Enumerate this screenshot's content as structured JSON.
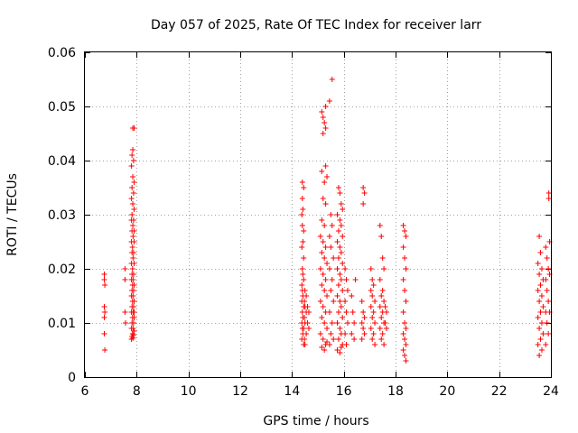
{
  "chart_data": {
    "type": "scatter",
    "title": "Day 057 of 2025, Rate Of TEC Index for receiver larr",
    "xlabel": "GPS time / hours",
    "ylabel": "ROTI / TECUs",
    "xlim": [
      6,
      24
    ],
    "ylim": [
      0,
      0.06
    ],
    "x_ticks": [
      6,
      8,
      10,
      12,
      14,
      16,
      18,
      20,
      22,
      24
    ],
    "x_tick_labels": [
      "6",
      "8",
      "10",
      "12",
      "14",
      "16",
      "18",
      "20",
      "22",
      "24"
    ],
    "y_ticks": [
      0,
      0.01,
      0.02,
      0.03,
      0.04,
      0.05,
      0.06
    ],
    "y_tick_labels": [
      "0",
      "0.01",
      "0.02",
      "0.03",
      "0.04",
      "0.05",
      "0.06"
    ],
    "grid": true,
    "marker": "+",
    "color": "#ff0000",
    "points": [
      [
        6.75,
        0.019
      ],
      [
        6.75,
        0.018
      ],
      [
        6.77,
        0.017
      ],
      [
        6.75,
        0.013
      ],
      [
        6.77,
        0.012
      ],
      [
        6.75,
        0.011
      ],
      [
        6.75,
        0.008
      ],
      [
        6.77,
        0.005
      ],
      [
        7.55,
        0.02
      ],
      [
        7.55,
        0.018
      ],
      [
        7.55,
        0.012
      ],
      [
        7.57,
        0.01
      ],
      [
        7.85,
        0.046
      ],
      [
        7.9,
        0.046
      ],
      [
        7.85,
        0.042
      ],
      [
        7.82,
        0.041
      ],
      [
        7.88,
        0.04
      ],
      [
        7.8,
        0.039
      ],
      [
        7.85,
        0.037
      ],
      [
        7.9,
        0.036
      ],
      [
        7.82,
        0.035
      ],
      [
        7.88,
        0.034
      ],
      [
        7.8,
        0.033
      ],
      [
        7.85,
        0.032
      ],
      [
        7.9,
        0.031
      ],
      [
        7.82,
        0.03
      ],
      [
        7.88,
        0.029
      ],
      [
        7.8,
        0.029
      ],
      [
        7.85,
        0.028
      ],
      [
        7.9,
        0.027
      ],
      [
        7.82,
        0.027
      ],
      [
        7.86,
        0.026
      ],
      [
        7.8,
        0.025
      ],
      [
        7.9,
        0.025
      ],
      [
        7.84,
        0.024
      ],
      [
        7.88,
        0.023
      ],
      [
        7.82,
        0.023
      ],
      [
        7.86,
        0.022
      ],
      [
        7.8,
        0.021
      ],
      [
        7.9,
        0.021
      ],
      [
        7.84,
        0.02
      ],
      [
        7.88,
        0.019
      ],
      [
        7.82,
        0.019
      ],
      [
        7.86,
        0.018
      ],
      [
        7.8,
        0.018
      ],
      [
        7.9,
        0.017
      ],
      [
        7.84,
        0.017
      ],
      [
        7.88,
        0.016
      ],
      [
        7.82,
        0.016
      ],
      [
        7.86,
        0.015
      ],
      [
        7.8,
        0.015
      ],
      [
        7.9,
        0.014
      ],
      [
        7.84,
        0.014
      ],
      [
        7.88,
        0.013
      ],
      [
        7.82,
        0.013
      ],
      [
        7.86,
        0.012
      ],
      [
        7.8,
        0.012
      ],
      [
        7.9,
        0.011
      ],
      [
        7.84,
        0.011
      ],
      [
        7.88,
        0.01
      ],
      [
        7.82,
        0.01
      ],
      [
        7.86,
        0.009
      ],
      [
        7.8,
        0.009
      ],
      [
        7.9,
        0.0085
      ],
      [
        7.84,
        0.008
      ],
      [
        7.88,
        0.0078
      ],
      [
        7.82,
        0.0075
      ],
      [
        7.86,
        0.0072
      ],
      [
        7.8,
        0.007
      ],
      [
        7.9,
        0.012
      ],
      [
        14.4,
        0.036
      ],
      [
        14.45,
        0.035
      ],
      [
        14.4,
        0.033
      ],
      [
        14.42,
        0.031
      ],
      [
        14.38,
        0.03
      ],
      [
        14.4,
        0.028
      ],
      [
        14.45,
        0.027
      ],
      [
        14.42,
        0.025
      ],
      [
        14.38,
        0.024
      ],
      [
        14.45,
        0.022
      ],
      [
        14.4,
        0.02
      ],
      [
        14.42,
        0.019
      ],
      [
        14.45,
        0.018
      ],
      [
        14.38,
        0.017
      ],
      [
        14.4,
        0.016
      ],
      [
        14.5,
        0.016
      ],
      [
        14.55,
        0.015
      ],
      [
        14.42,
        0.015
      ],
      [
        14.48,
        0.014
      ],
      [
        14.38,
        0.014
      ],
      [
        14.45,
        0.013
      ],
      [
        14.5,
        0.013
      ],
      [
        14.4,
        0.012
      ],
      [
        14.55,
        0.012
      ],
      [
        14.42,
        0.011
      ],
      [
        14.48,
        0.011
      ],
      [
        14.38,
        0.01
      ],
      [
        14.5,
        0.01
      ],
      [
        14.45,
        0.009
      ],
      [
        14.4,
        0.009
      ],
      [
        14.55,
        0.008
      ],
      [
        14.42,
        0.008
      ],
      [
        14.48,
        0.007
      ],
      [
        14.38,
        0.007
      ],
      [
        14.5,
        0.006
      ],
      [
        14.45,
        0.006
      ],
      [
        14.6,
        0.013
      ],
      [
        14.65,
        0.012
      ],
      [
        14.6,
        0.01
      ],
      [
        14.65,
        0.009
      ],
      [
        15.15,
        0.049
      ],
      [
        15.2,
        0.048
      ],
      [
        15.3,
        0.05
      ],
      [
        15.45,
        0.051
      ],
      [
        15.25,
        0.047
      ],
      [
        15.3,
        0.046
      ],
      [
        15.2,
        0.045
      ],
      [
        15.55,
        0.055
      ],
      [
        15.15,
        0.038
      ],
      [
        15.3,
        0.039
      ],
      [
        15.35,
        0.037
      ],
      [
        15.25,
        0.036
      ],
      [
        15.2,
        0.033
      ],
      [
        15.3,
        0.032
      ],
      [
        15.15,
        0.029
      ],
      [
        15.25,
        0.028
      ],
      [
        15.1,
        0.026
      ],
      [
        15.2,
        0.025
      ],
      [
        15.3,
        0.024
      ],
      [
        15.15,
        0.023
      ],
      [
        15.25,
        0.022
      ],
      [
        15.35,
        0.021
      ],
      [
        15.1,
        0.02
      ],
      [
        15.2,
        0.019
      ],
      [
        15.3,
        0.018
      ],
      [
        15.15,
        0.017
      ],
      [
        15.25,
        0.016
      ],
      [
        15.35,
        0.015
      ],
      [
        15.1,
        0.014
      ],
      [
        15.2,
        0.013
      ],
      [
        15.3,
        0.012
      ],
      [
        15.15,
        0.011
      ],
      [
        15.25,
        0.01
      ],
      [
        15.35,
        0.009
      ],
      [
        15.1,
        0.008
      ],
      [
        15.2,
        0.007
      ],
      [
        15.3,
        0.006
      ],
      [
        15.15,
        0.0055
      ],
      [
        15.25,
        0.005
      ],
      [
        15.35,
        0.0065
      ],
      [
        15.5,
        0.03
      ],
      [
        15.55,
        0.028
      ],
      [
        15.45,
        0.026
      ],
      [
        15.5,
        0.024
      ],
      [
        15.6,
        0.022
      ],
      [
        15.45,
        0.02
      ],
      [
        15.55,
        0.018
      ],
      [
        15.5,
        0.016
      ],
      [
        15.6,
        0.014
      ],
      [
        15.45,
        0.012
      ],
      [
        15.55,
        0.01
      ],
      [
        15.5,
        0.008
      ],
      [
        15.6,
        0.007
      ],
      [
        15.45,
        0.006
      ],
      [
        15.8,
        0.035
      ],
      [
        15.85,
        0.034
      ],
      [
        15.9,
        0.032
      ],
      [
        15.95,
        0.031
      ],
      [
        15.75,
        0.03
      ],
      [
        15.85,
        0.029
      ],
      [
        15.9,
        0.028
      ],
      [
        15.8,
        0.027
      ],
      [
        15.95,
        0.026
      ],
      [
        15.75,
        0.025
      ],
      [
        15.85,
        0.024
      ],
      [
        15.9,
        0.023
      ],
      [
        15.8,
        0.022
      ],
      [
        15.95,
        0.021
      ],
      [
        15.75,
        0.02
      ],
      [
        15.85,
        0.019
      ],
      [
        15.9,
        0.018
      ],
      [
        15.8,
        0.017
      ],
      [
        15.95,
        0.016
      ],
      [
        15.75,
        0.015
      ],
      [
        15.85,
        0.014
      ],
      [
        15.9,
        0.013
      ],
      [
        15.8,
        0.012
      ],
      [
        15.95,
        0.011
      ],
      [
        15.75,
        0.01
      ],
      [
        15.85,
        0.009
      ],
      [
        15.9,
        0.008
      ],
      [
        15.8,
        0.007
      ],
      [
        15.95,
        0.006
      ],
      [
        15.75,
        0.005
      ],
      [
        15.85,
        0.0045
      ],
      [
        15.9,
        0.0055
      ],
      [
        16.05,
        0.02
      ],
      [
        16.1,
        0.018
      ],
      [
        16.15,
        0.016
      ],
      [
        16.05,
        0.014
      ],
      [
        16.1,
        0.012
      ],
      [
        16.15,
        0.01
      ],
      [
        16.05,
        0.008
      ],
      [
        16.1,
        0.006
      ],
      [
        16.3,
        0.015
      ],
      [
        16.35,
        0.012
      ],
      [
        16.4,
        0.01
      ],
      [
        16.3,
        0.008
      ],
      [
        16.45,
        0.018
      ],
      [
        16.4,
        0.007
      ],
      [
        16.75,
        0.035
      ],
      [
        16.8,
        0.034
      ],
      [
        16.75,
        0.032
      ],
      [
        16.7,
        0.014
      ],
      [
        16.75,
        0.012
      ],
      [
        16.8,
        0.011
      ],
      [
        16.7,
        0.01
      ],
      [
        16.75,
        0.009
      ],
      [
        16.8,
        0.008
      ],
      [
        16.7,
        0.007
      ],
      [
        17.05,
        0.02
      ],
      [
        17.1,
        0.018
      ],
      [
        17.15,
        0.017
      ],
      [
        17.05,
        0.016
      ],
      [
        17.1,
        0.015
      ],
      [
        17.2,
        0.014
      ],
      [
        17.05,
        0.013
      ],
      [
        17.15,
        0.012
      ],
      [
        17.1,
        0.011
      ],
      [
        17.2,
        0.01
      ],
      [
        17.05,
        0.009
      ],
      [
        17.15,
        0.008
      ],
      [
        17.1,
        0.007
      ],
      [
        17.2,
        0.006
      ],
      [
        17.4,
        0.028
      ],
      [
        17.45,
        0.026
      ],
      [
        17.5,
        0.022
      ],
      [
        17.55,
        0.02
      ],
      [
        17.4,
        0.018
      ],
      [
        17.5,
        0.016
      ],
      [
        17.45,
        0.015
      ],
      [
        17.55,
        0.014
      ],
      [
        17.4,
        0.013
      ],
      [
        17.5,
        0.012
      ],
      [
        17.45,
        0.011
      ],
      [
        17.55,
        0.01
      ],
      [
        17.4,
        0.009
      ],
      [
        17.5,
        0.008
      ],
      [
        17.45,
        0.007
      ],
      [
        17.55,
        0.006
      ],
      [
        17.6,
        0.013
      ],
      [
        17.65,
        0.012
      ],
      [
        17.6,
        0.01
      ],
      [
        17.65,
        0.009
      ],
      [
        18.3,
        0.028
      ],
      [
        18.35,
        0.027
      ],
      [
        18.4,
        0.026
      ],
      [
        18.3,
        0.024
      ],
      [
        18.35,
        0.022
      ],
      [
        18.4,
        0.02
      ],
      [
        18.3,
        0.018
      ],
      [
        18.35,
        0.016
      ],
      [
        18.4,
        0.014
      ],
      [
        18.3,
        0.012
      ],
      [
        18.35,
        0.01
      ],
      [
        18.4,
        0.009
      ],
      [
        18.3,
        0.008
      ],
      [
        18.35,
        0.007
      ],
      [
        18.4,
        0.006
      ],
      [
        18.3,
        0.005
      ],
      [
        18.35,
        0.004
      ],
      [
        18.4,
        0.003
      ],
      [
        23.55,
        0.026
      ],
      [
        23.6,
        0.023
      ],
      [
        23.5,
        0.021
      ],
      [
        23.65,
        0.02
      ],
      [
        23.55,
        0.019
      ],
      [
        23.7,
        0.018
      ],
      [
        23.6,
        0.017
      ],
      [
        23.5,
        0.016
      ],
      [
        23.65,
        0.015
      ],
      [
        23.55,
        0.014
      ],
      [
        23.7,
        0.013
      ],
      [
        23.6,
        0.012
      ],
      [
        23.5,
        0.011
      ],
      [
        23.65,
        0.01
      ],
      [
        23.55,
        0.009
      ],
      [
        23.7,
        0.008
      ],
      [
        23.6,
        0.007
      ],
      [
        23.5,
        0.006
      ],
      [
        23.65,
        0.005
      ],
      [
        23.55,
        0.004
      ],
      [
        23.8,
        0.024
      ],
      [
        23.85,
        0.022
      ],
      [
        23.9,
        0.02
      ],
      [
        23.8,
        0.018
      ],
      [
        23.85,
        0.016
      ],
      [
        23.9,
        0.014
      ],
      [
        23.8,
        0.012
      ],
      [
        23.85,
        0.01
      ],
      [
        23.9,
        0.008
      ],
      [
        23.8,
        0.006
      ],
      [
        23.92,
        0.034
      ],
      [
        23.92,
        0.033
      ],
      [
        23.95,
        0.025
      ],
      [
        23.95,
        0.012
      ],
      [
        23.95,
        0.019
      ]
    ]
  }
}
